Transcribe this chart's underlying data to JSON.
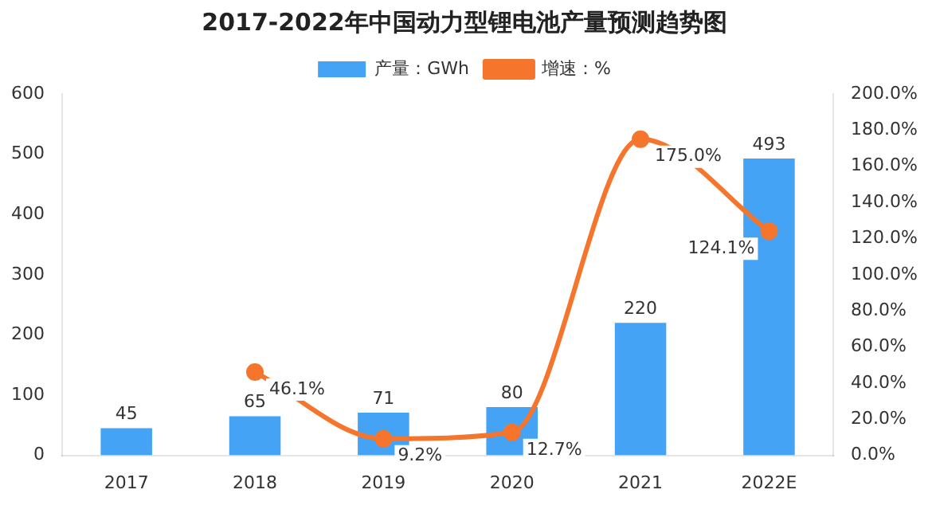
{
  "chart_data": {
    "type": "bar",
    "title": "2017-2022年中国动力型锂电池产量预测趋势图",
    "categories": [
      "2017",
      "2018",
      "2019",
      "2020",
      "2021",
      "2022E"
    ],
    "series": [
      {
        "name": "产量：GWh",
        "color": "#45a3f5",
        "values": [
          45,
          65,
          71,
          80,
          220,
          493
        ],
        "value_labels": [
          "45",
          "65",
          "71",
          "80",
          "220",
          "493"
        ]
      },
      {
        "name": "增速：%",
        "type": "line",
        "axis": "y2",
        "color": "#f4752b",
        "values": [
          null,
          46.1,
          9.2,
          12.7,
          175.0,
          124.1
        ],
        "value_labels": [
          null,
          "46.1%",
          "9.2%",
          "12.7%",
          "175.0%",
          "124.1%"
        ]
      }
    ],
    "ylim": [
      0,
      600
    ],
    "yticks": [
      0,
      100,
      200,
      300,
      400,
      500,
      600
    ],
    "y2lim": [
      0,
      200
    ],
    "y2ticks": [
      {
        "value": 0,
        "label": "0.0%"
      },
      {
        "value": 20,
        "label": "20.0%"
      },
      {
        "value": 40,
        "label": "40.0%"
      },
      {
        "value": 60,
        "label": "60.0%"
      },
      {
        "value": 80,
        "label": "80.0%"
      },
      {
        "value": 100,
        "label": "100.0%"
      },
      {
        "value": 120,
        "label": "120.0%"
      },
      {
        "value": 140,
        "label": "140.0%"
      },
      {
        "value": 160,
        "label": "160.0%"
      },
      {
        "value": 180,
        "label": "180.0%"
      },
      {
        "value": 200,
        "label": "200.0%"
      }
    ],
    "grid": false,
    "legend": "top",
    "marker": "circle",
    "line_style": "solid"
  }
}
